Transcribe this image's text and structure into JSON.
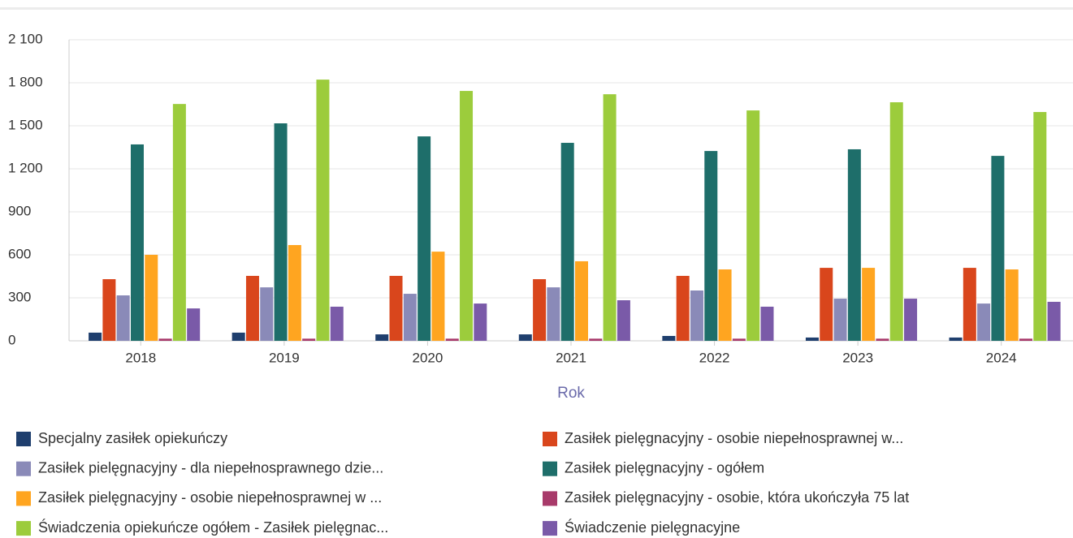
{
  "chart_data": {
    "type": "bar",
    "x_label": "Rok",
    "categories": [
      "2018",
      "2019",
      "2020",
      "2021",
      "2022",
      "2023",
      "2024"
    ],
    "ylim": [
      0,
      2100
    ],
    "yticks": [
      0,
      300,
      600,
      900,
      {
        "value": 1200,
        "label": "1 200"
      },
      {
        "value": 1500,
        "label": "1 500"
      },
      {
        "value": 1800,
        "label": "1 800"
      },
      {
        "value": 2100,
        "label": "2 100"
      }
    ],
    "grid": true,
    "series": [
      {
        "name": "Specjalny zasiłek opiekuńczy",
        "color": "#1f3f6e",
        "values": [
          57,
          57,
          45,
          45,
          34,
          23,
          23
        ]
      },
      {
        "name": "Zasiłek pielęgnacyjny -  osobie niepełnosprawnej w...",
        "color": "#d9461c",
        "values": [
          430,
          453,
          453,
          430,
          453,
          509,
          509
        ]
      },
      {
        "name": "Zasiłek pielęgnacyjny - dla niepełnosprawnego dzie...",
        "color": "#8a8ab8",
        "values": [
          317,
          373,
          328,
          373,
          351,
          294,
          260
        ]
      },
      {
        "name": "Zasiłek pielęgnacyjny - ogółem",
        "color": "#1e6e6a",
        "values": [
          1370,
          1517,
          1426,
          1381,
          1324,
          1336,
          1290
        ]
      },
      {
        "name": "Zasiłek pielęgnacyjny - osobie niepełnosprawnej w ...",
        "color": "#ffa520",
        "values": [
          600,
          668,
          622,
          555,
          498,
          509,
          498
        ]
      },
      {
        "name": "Zasiłek pielęgnacyjny - osobie, która ukończyła 75 lat",
        "color": "#a83a6a",
        "values": [
          15,
          15,
          15,
          15,
          15,
          15,
          15
        ]
      },
      {
        "name": "Świadczenia opiekuńcze ogółem - Zasiłek pielęgnac...",
        "color": "#9ccc3c",
        "values": [
          1652,
          1822,
          1743,
          1720,
          1607,
          1664,
          1596
        ]
      },
      {
        "name": "Świadczenie pielęgnacyjne",
        "color": "#7a5aa8",
        "values": [
          226,
          238,
          260,
          283,
          238,
          294,
          272
        ]
      }
    ]
  }
}
